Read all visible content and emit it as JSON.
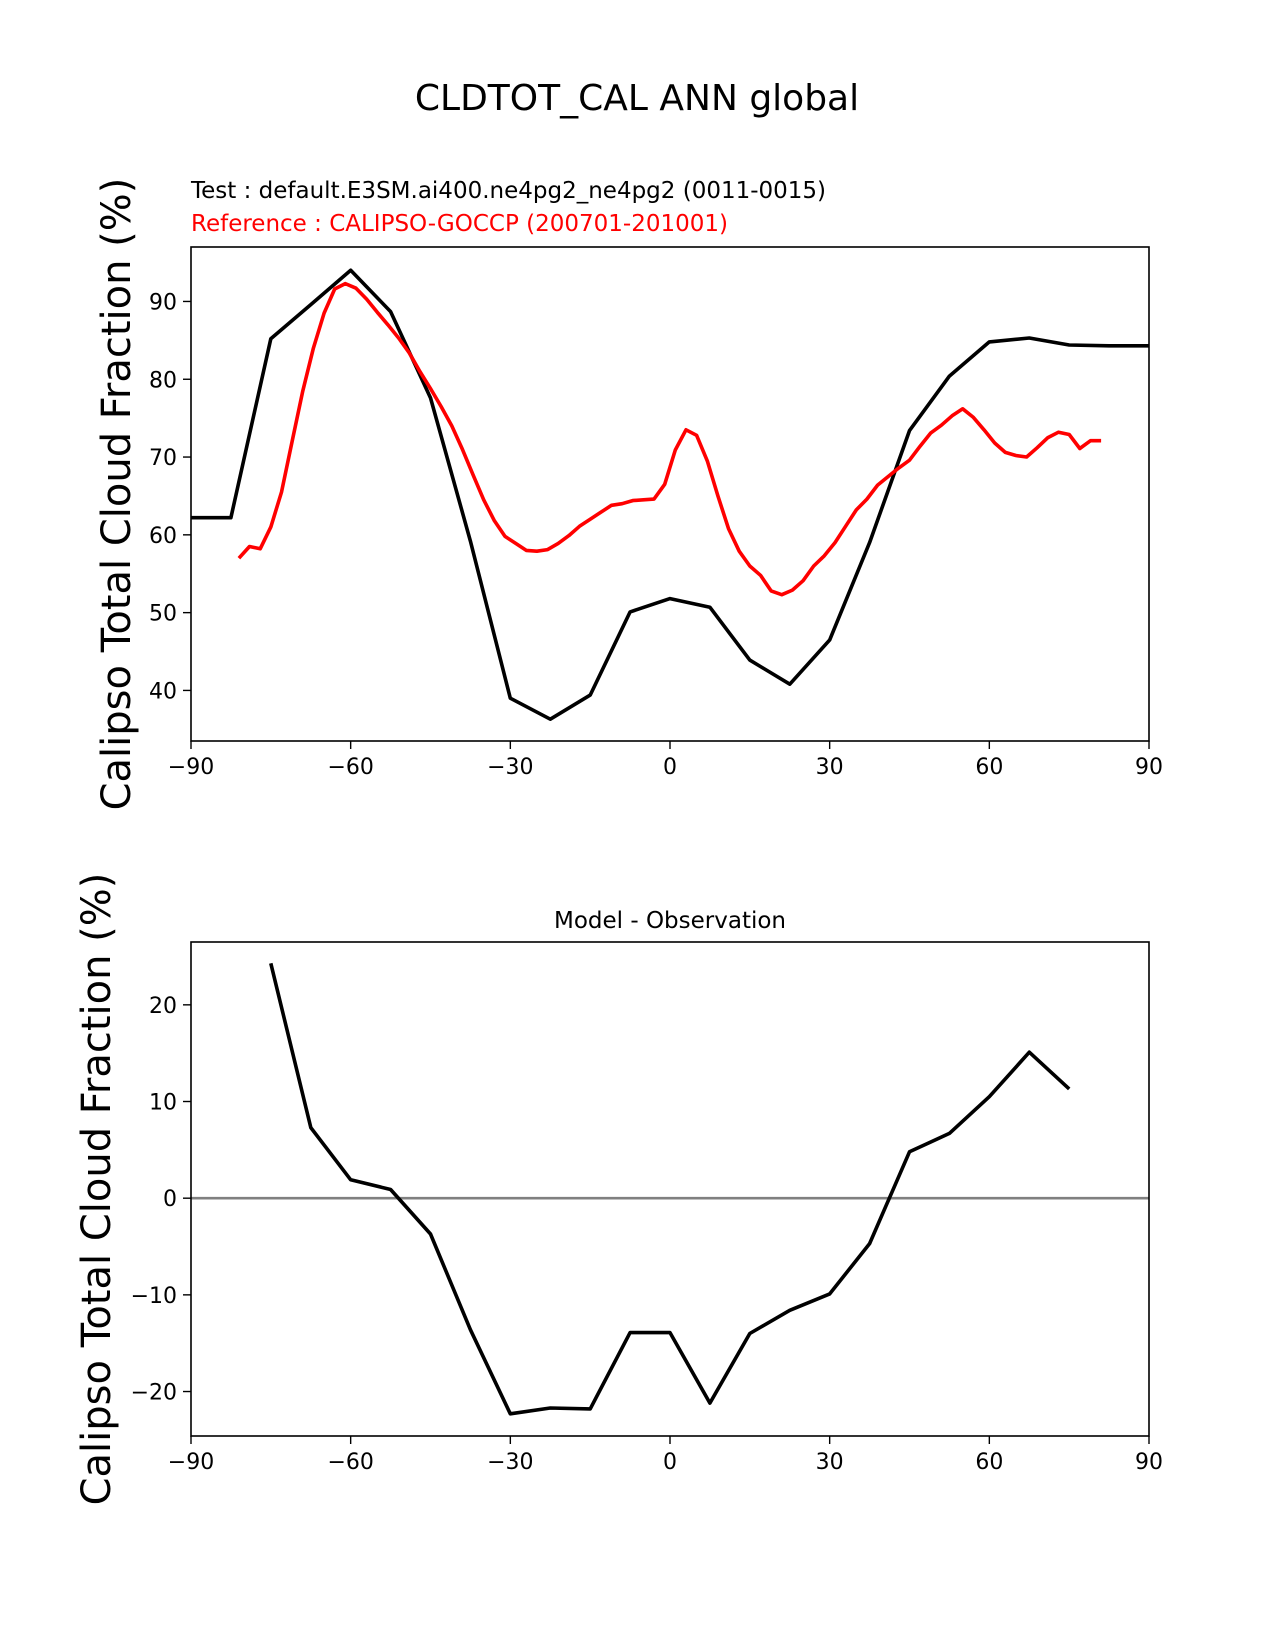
{
  "title": "CLDTOT_CAL ANN global",
  "chart_data": [
    {
      "type": "line",
      "test_label": "Test : default.E3SM.ai400.ne4pg2_ne4pg2 (0011-0015)",
      "reference_label": "Reference : CALIPSO-GOCCP (200701-201001)",
      "ylabel": "Calipso Total Cloud Fraction (%)",
      "xlim": [
        -90,
        90
      ],
      "ylim": [
        33.5,
        97
      ],
      "xticks": [
        -90,
        -60,
        -30,
        0,
        30,
        60,
        90
      ],
      "yticks": [
        40,
        50,
        60,
        70,
        80,
        90
      ],
      "series": [
        {
          "color": "#000000",
          "x": [
            -90,
            -82.5,
            -75,
            -67.5,
            -60,
            -52.5,
            -45,
            -37.5,
            -30,
            -22.5,
            -15,
            -7.5,
            0,
            7.5,
            15,
            22.5,
            30,
            37.5,
            45,
            52.5,
            60,
            67.5,
            75,
            82.5,
            90
          ],
          "y": [
            62.2,
            62.2,
            85.2,
            89.6,
            94.0,
            88.7,
            77.6,
            59.2,
            39.0,
            36.3,
            39.4,
            50.1,
            51.8,
            50.7,
            43.9,
            40.8,
            46.5,
            59.0,
            73.4,
            80.4,
            84.8,
            85.3,
            84.4,
            84.3,
            84.3
          ]
        },
        {
          "color": "#ff0000",
          "x": [
            -81,
            -79,
            -77,
            -75,
            -73,
            -71,
            -69,
            -67,
            -65,
            -63,
            -61,
            -59,
            -57,
            -55,
            -53,
            -51,
            -49,
            -47,
            -45,
            -43,
            -41,
            -39,
            -37,
            -35,
            -33,
            -31,
            -29,
            -27,
            -25,
            -23,
            -21,
            -19,
            -17,
            -15,
            -13,
            -11,
            -9,
            -7,
            -5,
            -3,
            -1,
            1,
            3,
            5,
            7,
            9,
            11,
            13,
            15,
            17,
            19,
            21,
            23,
            25,
            27,
            29,
            31,
            33,
            35,
            37,
            39,
            41,
            43,
            45,
            47,
            49,
            51,
            53,
            55,
            57,
            59,
            61,
            63,
            65,
            67,
            69,
            71,
            73,
            75,
            77,
            79,
            81
          ],
          "y": [
            57.0,
            58.5,
            58.2,
            61.0,
            65.5,
            72.0,
            78.5,
            84.0,
            88.5,
            91.6,
            92.3,
            91.7,
            90.3,
            88.6,
            87.0,
            85.3,
            83.4,
            81.0,
            78.8,
            76.5,
            74.0,
            71.0,
            67.7,
            64.5,
            61.8,
            59.8,
            58.9,
            58.0,
            57.9,
            58.1,
            58.9,
            59.9,
            61.1,
            62.0,
            62.9,
            63.8,
            64.0,
            64.4,
            64.5,
            64.6,
            66.5,
            70.9,
            73.5,
            72.8,
            69.5,
            65.0,
            60.8,
            57.9,
            56.0,
            54.8,
            52.8,
            52.3,
            52.9,
            54.1,
            56.0,
            57.3,
            59.0,
            61.1,
            63.2,
            64.6,
            66.4,
            67.5,
            68.6,
            69.6,
            71.4,
            73.1,
            74.1,
            75.3,
            76.2,
            75.1,
            73.5,
            71.8,
            70.6,
            70.2,
            70.0,
            71.2,
            72.5,
            73.2,
            72.9,
            71.1,
            72.1,
            72.1
          ]
        }
      ]
    },
    {
      "type": "line",
      "title": "Model - Observation",
      "ylabel": "Calipso Total Cloud Fraction (%)",
      "xlim": [
        -90,
        90
      ],
      "ylim": [
        -24.6,
        26.5
      ],
      "xticks": [
        -90,
        -60,
        -30,
        0,
        30,
        60,
        90
      ],
      "yticks": [
        -20,
        -10,
        0,
        10,
        20
      ],
      "zero_line_color": "#808080",
      "series": [
        {
          "color": "#000000",
          "x": [
            -75,
            -67.5,
            -60,
            -52.5,
            -45,
            -37.5,
            -30,
            -22.5,
            -15,
            -7.5,
            0,
            7.5,
            15,
            22.5,
            30,
            37.5,
            45,
            52.5,
            60,
            67.5,
            75
          ],
          "y": [
            24.3,
            7.3,
            1.9,
            0.9,
            -3.7,
            -13.6,
            -22.3,
            -21.7,
            -21.8,
            -13.9,
            -13.9,
            -21.2,
            -14.0,
            -11.6,
            -9.9,
            -4.7,
            4.8,
            6.7,
            10.5,
            15.1,
            11.3
          ]
        }
      ]
    }
  ]
}
